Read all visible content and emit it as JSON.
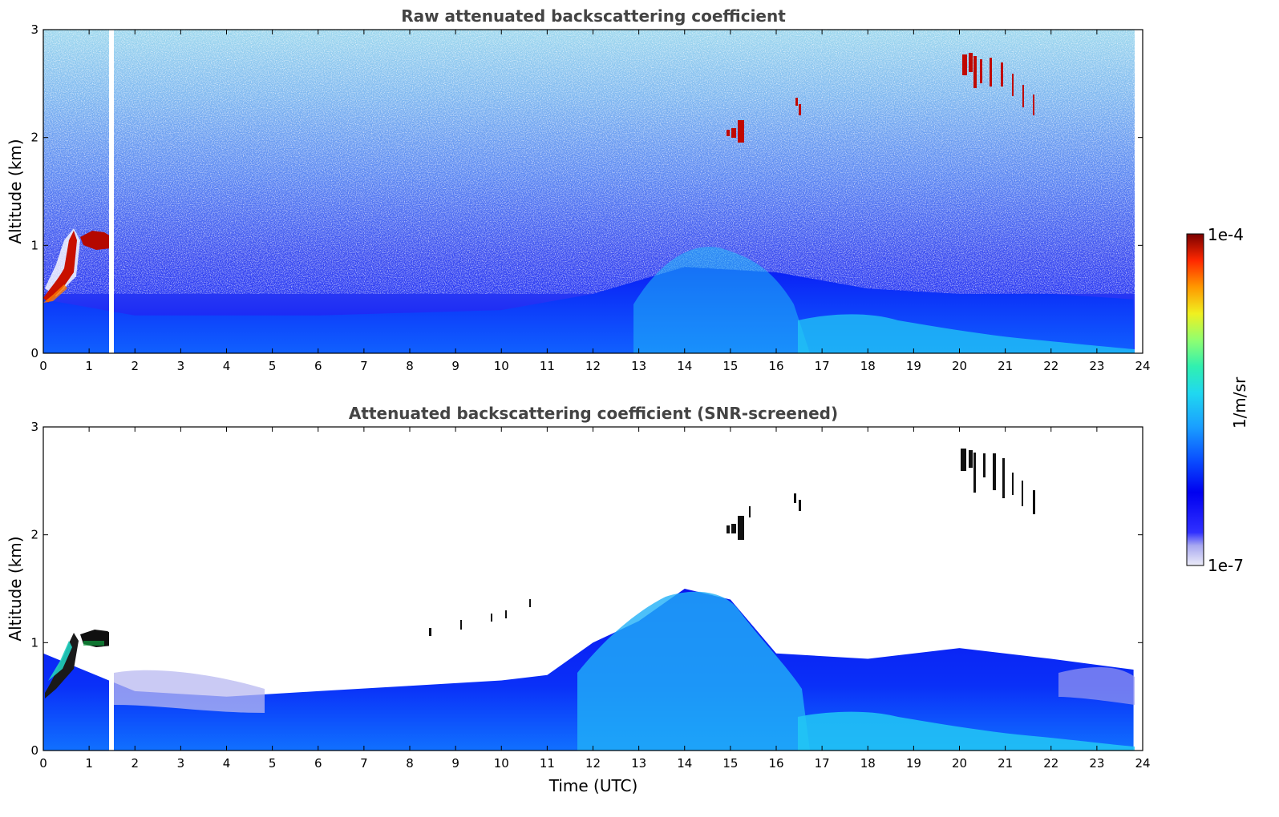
{
  "chart_data": [
    {
      "type": "heatmap",
      "title": "Raw attenuated backscattering coefficient",
      "xlabel": "",
      "ylabel": "Altitude (km)",
      "xlim": [
        0,
        24
      ],
      "ylim": [
        0,
        3
      ],
      "x_ticks": [
        "0",
        "1",
        "2",
        "3",
        "4",
        "5",
        "6",
        "7",
        "8",
        "9",
        "10",
        "11",
        "12",
        "13",
        "14",
        "15",
        "16",
        "17",
        "18",
        "19",
        "20",
        "21",
        "22",
        "23",
        "24"
      ],
      "y_ticks": [
        "0",
        "1",
        "2",
        "3"
      ],
      "data_gap_x": [
        1.45,
        1.55
      ],
      "boundary_layer_top_km": [
        {
          "x": 0,
          "y": 0.5
        },
        {
          "x": 2,
          "y": 0.35
        },
        {
          "x": 6,
          "y": 0.35
        },
        {
          "x": 10,
          "y": 0.4
        },
        {
          "x": 12,
          "y": 0.55
        },
        {
          "x": 14,
          "y": 0.8
        },
        {
          "x": 16,
          "y": 0.75
        },
        {
          "x": 18,
          "y": 0.6
        },
        {
          "x": 20,
          "y": 0.55
        },
        {
          "x": 22,
          "y": 0.55
        },
        {
          "x": 23.8,
          "y": 0.5
        }
      ],
      "cloud_features": [
        {
          "label": "low cloud",
          "x": [
            0,
            1.4
          ],
          "alt_km": [
            0.45,
            1.15
          ]
        },
        {
          "label": "cloud patch",
          "x": [
            14.9,
            15.35
          ],
          "alt_km": [
            1.95,
            2.15
          ]
        },
        {
          "label": "cloud patch",
          "x": [
            16.4,
            16.6
          ],
          "alt_km": [
            2.2,
            2.35
          ]
        },
        {
          "label": "cirrus streak",
          "x": [
            20.0,
            21.7
          ],
          "alt_km": [
            2.2,
            2.8
          ]
        }
      ]
    },
    {
      "type": "heatmap",
      "title": "Attenuated backscattering coefficient (SNR-screened)",
      "xlabel": "Time (UTC)",
      "ylabel": "Altitude (km)",
      "xlim": [
        0,
        24
      ],
      "ylim": [
        0,
        3
      ],
      "x_ticks": [
        "0",
        "1",
        "2",
        "3",
        "4",
        "5",
        "6",
        "7",
        "8",
        "9",
        "10",
        "11",
        "12",
        "13",
        "14",
        "15",
        "16",
        "17",
        "18",
        "19",
        "20",
        "21",
        "22",
        "23",
        "24"
      ],
      "y_ticks": [
        "0",
        "1",
        "2",
        "3"
      ],
      "data_gap_x": [
        1.45,
        1.55
      ],
      "screened_top_km": [
        {
          "x": 0,
          "y": 0.9
        },
        {
          "x": 2,
          "y": 0.55
        },
        {
          "x": 4,
          "y": 0.5
        },
        {
          "x": 6,
          "y": 0.55
        },
        {
          "x": 8,
          "y": 0.6
        },
        {
          "x": 10,
          "y": 0.65
        },
        {
          "x": 11,
          "y": 0.7
        },
        {
          "x": 12,
          "y": 1.0
        },
        {
          "x": 13,
          "y": 1.2
        },
        {
          "x": 14,
          "y": 1.5
        },
        {
          "x": 15,
          "y": 1.4
        },
        {
          "x": 16,
          "y": 0.9
        },
        {
          "x": 18,
          "y": 0.85
        },
        {
          "x": 20,
          "y": 0.95
        },
        {
          "x": 22,
          "y": 0.85
        },
        {
          "x": 23.8,
          "y": 0.75
        }
      ],
      "cloud_features": [
        {
          "label": "low cloud",
          "x": [
            0,
            1.4
          ],
          "alt_km": [
            0.45,
            1.15
          ]
        },
        {
          "label": "cloud patch",
          "x": [
            14.9,
            15.35
          ],
          "alt_km": [
            1.95,
            2.15
          ]
        },
        {
          "label": "cloud patch",
          "x": [
            16.4,
            16.6
          ],
          "alt_km": [
            2.2,
            2.35
          ]
        },
        {
          "label": "cirrus streak",
          "x": [
            20.0,
            21.7
          ],
          "alt_km": [
            2.2,
            2.8
          ]
        }
      ]
    }
  ],
  "colorbar": {
    "max_label": "1e-4",
    "min_label": "1e-7",
    "unit_label": "1/m/sr",
    "colors": [
      "#e8e8f8",
      "#b8b8f0",
      "#7a7af0",
      "#0000ff",
      "#1a5cff",
      "#20b0ff",
      "#20e8d0",
      "#80ff80",
      "#f0f020",
      "#ff9000",
      "#ff2000",
      "#800000"
    ]
  }
}
